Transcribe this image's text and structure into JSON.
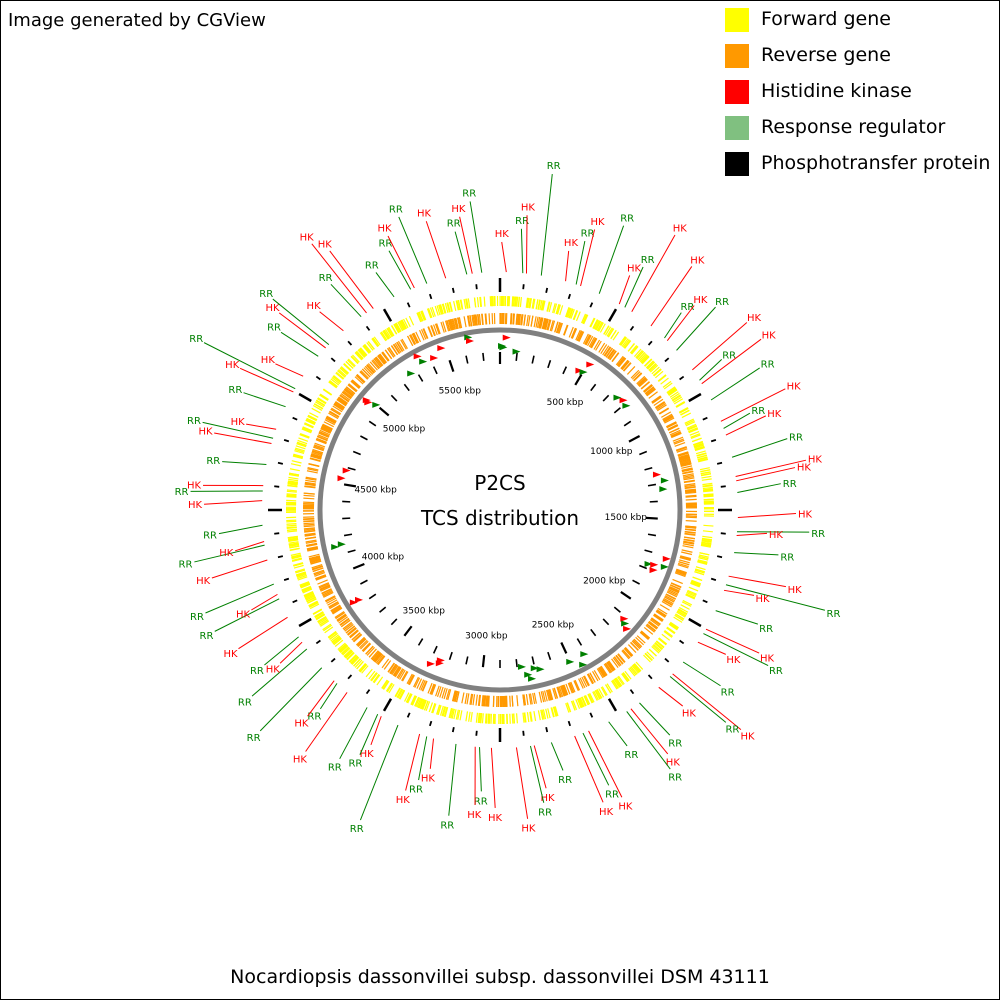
{
  "credit": "Image generated by CGView",
  "legend": [
    {
      "label": "Forward gene",
      "color": "#ffff00"
    },
    {
      "label": "Reverse gene",
      "color": "#ff9900"
    },
    {
      "label": "Histidine kinase",
      "color": "#ff0000"
    },
    {
      "label": "Response regulator",
      "color": "#80c080"
    },
    {
      "label": "Phosphotransfer protein",
      "color": "#000000"
    }
  ],
  "map": {
    "title_line1": "P2CS",
    "title_line2": "TCS distribution",
    "scale_labels": [
      "500 kbp",
      "1000 kbp",
      "1500 kbp",
      "2000 kbp",
      "2500 kbp",
      "3000 kbp",
      "3500 kbp",
      "4000 kbp",
      "4500 kbp",
      "5000 kbp",
      "5500 kbp"
    ],
    "colors": {
      "hk": "#ff0000",
      "rr": "#008000",
      "forward": "#ffff00",
      "reverse": "#ff9900",
      "backbone": "#808080",
      "ticks": "#000000"
    }
  },
  "features": [
    {
      "text": "HK",
      "type": "hk"
    },
    {
      "text": "RR",
      "type": "rr"
    },
    {
      "text": "HK",
      "type": "hk"
    },
    {
      "text": "RR",
      "type": "rr"
    },
    {
      "text": "HK",
      "type": "hk"
    },
    {
      "text": "RR",
      "type": "rr"
    },
    {
      "text": "HK",
      "type": "hk"
    },
    {
      "text": "RR",
      "type": "rr"
    },
    {
      "text": "HK",
      "type": "hk"
    },
    {
      "text": "RR",
      "type": "rr"
    },
    {
      "text": "HK",
      "type": "hk"
    },
    {
      "text": "RR",
      "type": "rr"
    },
    {
      "text": "HK",
      "type": "hk"
    },
    {
      "text": "RR",
      "type": "rr"
    },
    {
      "text": "HK",
      "type": "hk"
    },
    {
      "text": "HK",
      "type": "hk"
    },
    {
      "text": "RR",
      "type": "rr"
    },
    {
      "text": "HK",
      "type": "hk"
    },
    {
      "text": "RR",
      "type": "rr"
    },
    {
      "text": "HK",
      "type": "hk"
    },
    {
      "text": "RR",
      "type": "rr"
    },
    {
      "text": "HK",
      "type": "hk"
    },
    {
      "text": "RR",
      "type": "rr"
    },
    {
      "text": "HK",
      "type": "hk"
    },
    {
      "text": "RR",
      "type": "rr"
    },
    {
      "text": "HK",
      "type": "hk"
    },
    {
      "text": "RR",
      "type": "rr"
    },
    {
      "text": "HK",
      "type": "hk"
    },
    {
      "text": "HK",
      "type": "hk"
    },
    {
      "text": "RR",
      "type": "rr"
    },
    {
      "text": "HK",
      "type": "hk"
    },
    {
      "text": "RR",
      "type": "rr"
    },
    {
      "text": "HK",
      "type": "hk"
    },
    {
      "text": "RR",
      "type": "rr"
    },
    {
      "text": "HK",
      "type": "hk"
    },
    {
      "text": "RR",
      "type": "rr"
    },
    {
      "text": "HK",
      "type": "hk"
    },
    {
      "text": "RR",
      "type": "rr"
    },
    {
      "text": "HK",
      "type": "hk"
    },
    {
      "text": "RR",
      "type": "rr"
    },
    {
      "text": "HK",
      "type": "hk"
    },
    {
      "text": "RR",
      "type": "rr"
    },
    {
      "text": "HK",
      "type": "hk"
    },
    {
      "text": "RR",
      "type": "rr"
    },
    {
      "text": "HK",
      "type": "hk"
    },
    {
      "text": "RR",
      "type": "rr"
    },
    {
      "text": "HK",
      "type": "hk"
    },
    {
      "text": "RR",
      "type": "rr"
    },
    {
      "text": "RR",
      "type": "rr"
    },
    {
      "text": "HK",
      "type": "hk"
    },
    {
      "text": "RR",
      "type": "rr"
    },
    {
      "text": "HK",
      "type": "hk"
    },
    {
      "text": "RR",
      "type": "rr"
    },
    {
      "text": "HK",
      "type": "hk"
    },
    {
      "text": "RR",
      "type": "rr"
    },
    {
      "text": "HK",
      "type": "hk"
    },
    {
      "text": "HK",
      "type": "hk"
    },
    {
      "text": "RR",
      "type": "rr"
    },
    {
      "text": "HK",
      "type": "hk"
    },
    {
      "text": "RR",
      "type": "rr"
    },
    {
      "text": "HK",
      "type": "hk"
    },
    {
      "text": "RR",
      "type": "rr"
    },
    {
      "text": "HK",
      "type": "hk"
    },
    {
      "text": "RR",
      "type": "rr"
    },
    {
      "text": "HK",
      "type": "hk"
    },
    {
      "text": "RR",
      "type": "rr"
    },
    {
      "text": "RR",
      "type": "rr"
    },
    {
      "text": "HK",
      "type": "hk"
    },
    {
      "text": "RR",
      "type": "rr"
    },
    {
      "text": "HK",
      "type": "hk"
    },
    {
      "text": "RR",
      "type": "rr"
    },
    {
      "text": "RR",
      "type": "rr"
    },
    {
      "text": "HK",
      "type": "hk"
    },
    {
      "text": "RR",
      "type": "rr"
    },
    {
      "text": "HK",
      "type": "hk"
    },
    {
      "text": "RR",
      "type": "rr"
    },
    {
      "text": "HK",
      "type": "hk"
    },
    {
      "text": "RR",
      "type": "rr"
    },
    {
      "text": "HK",
      "type": "hk"
    },
    {
      "text": "RR",
      "type": "rr"
    },
    {
      "text": "HK",
      "type": "hk"
    },
    {
      "text": "RR",
      "type": "rr"
    },
    {
      "text": "HK",
      "type": "hk"
    },
    {
      "text": "RR",
      "type": "rr"
    },
    {
      "text": "HK",
      "type": "hk"
    },
    {
      "text": "RR",
      "type": "rr"
    },
    {
      "text": "HK",
      "type": "hk"
    },
    {
      "text": "RR",
      "type": "rr"
    },
    {
      "text": "HK",
      "type": "hk"
    },
    {
      "text": "RR",
      "type": "rr"
    },
    {
      "text": "HK",
      "type": "hk"
    },
    {
      "text": "RR",
      "type": "rr"
    },
    {
      "text": "HK",
      "type": "hk"
    },
    {
      "text": "RR",
      "type": "rr"
    },
    {
      "text": "HK",
      "type": "hk"
    },
    {
      "text": "RR",
      "type": "rr"
    },
    {
      "text": "HK",
      "type": "hk"
    },
    {
      "text": "RR",
      "type": "rr"
    },
    {
      "text": "HK",
      "type": "hk"
    },
    {
      "text": "HK",
      "type": "hk"
    },
    {
      "text": "RR",
      "type": "rr"
    },
    {
      "text": "RR",
      "type": "rr"
    },
    {
      "text": "HK",
      "type": "hk"
    },
    {
      "text": "RR",
      "type": "rr"
    }
  ],
  "footer": "Nocardiopsis dassonvillei subsp. dassonvillei DSM 43111"
}
